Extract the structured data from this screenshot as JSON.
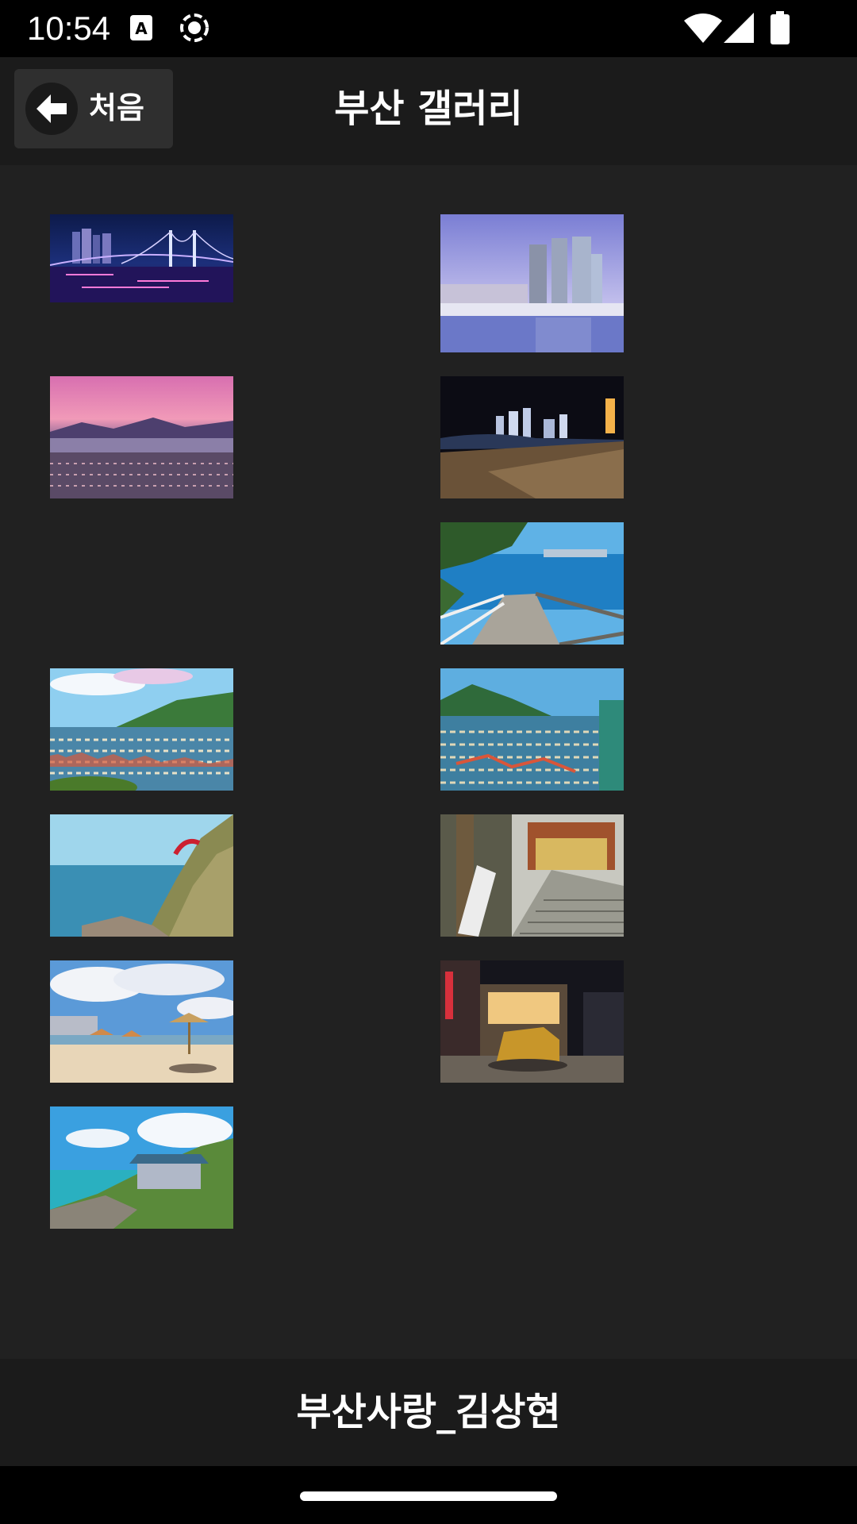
{
  "status_bar": {
    "time": "10:54",
    "left_icons": [
      "autofill-a-icon",
      "screen-record-icon"
    ],
    "right_icons": [
      "wifi-icon",
      "signal-icon",
      "battery-icon"
    ]
  },
  "header": {
    "back_label": "처음",
    "back_icon": "arrow-left-icon",
    "title": "부산 갤러리"
  },
  "gallery": {
    "photos": [
      {
        "subject": "Gwangan Bridge night view"
      },
      {
        "subject": "Marine City skyscrapers and yacht marina"
      },
      {
        "subject": "City panorama at pink sunset"
      },
      {
        "subject": "Haeundae beach at night"
      },
      {
        "subject": "Coastal wooden walkway with ocean view"
      },
      {
        "subject": "Gamcheon Culture Village hillside"
      },
      {
        "subject": "Gamcheon Culture Village houses"
      },
      {
        "subject": "Seaside cliff with red bridge"
      },
      {
        "subject": "Temple steps with stone marker"
      },
      {
        "subject": "Beach with straw parasols"
      },
      {
        "subject": "Night street with golden dog statue"
      },
      {
        "subject": "Haedong Yonggungsa seaside temple"
      }
    ]
  },
  "footer": {
    "text": "부산사랑_김상현"
  },
  "colors": {
    "background": "#212121",
    "header_bg": "#1b1b1b",
    "status_bar_bg": "#000000",
    "text": "#ffffff"
  }
}
